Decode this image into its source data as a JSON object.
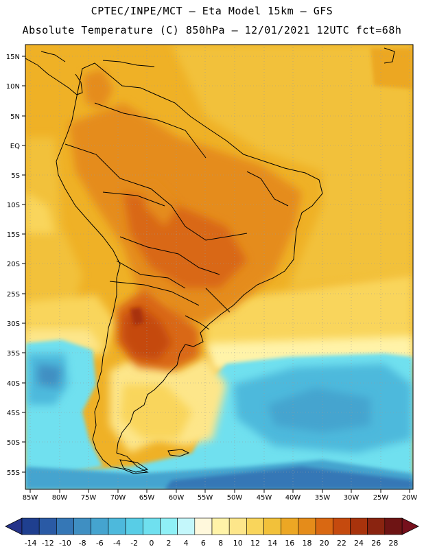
{
  "header": {
    "line1": "CPTEC/INPE/MCT —  Eta Model 15km — GFS",
    "line2": "Absolute Temperature (C) 850hPa — 12/01/2021 12UTC fct=68h"
  },
  "map": {
    "lat_labels": [
      "15N",
      "10N",
      "5N",
      "EQ",
      "5S",
      "10S",
      "15S",
      "20S",
      "25S",
      "30S",
      "35S",
      "40S",
      "45S",
      "50S",
      "55S"
    ],
    "lon_labels": [
      "85W",
      "80W",
      "75W",
      "70W",
      "65W",
      "60W",
      "55W",
      "50W",
      "45W",
      "40W",
      "35W",
      "30W",
      "25W",
      "20W"
    ]
  },
  "colorbar": {
    "labels": [
      "-14",
      "-12",
      "-10",
      "-8",
      "-6",
      "-4",
      "-2",
      "0",
      "2",
      "4",
      "6",
      "8",
      "10",
      "12",
      "14",
      "16",
      "18",
      "20",
      "22",
      "24",
      "26",
      "28"
    ],
    "colors": [
      "#1f3f8f",
      "#2a5aa5",
      "#3577b6",
      "#3f8fc2",
      "#45a4cf",
      "#4db9dc",
      "#58cde6",
      "#6fe0ef",
      "#8ff0f6",
      "#c4f7fb",
      "#fff8dc",
      "#fff3a8",
      "#fde68a",
      "#f9d55b",
      "#f2c13a",
      "#eca724",
      "#e58c1a",
      "#d96812",
      "#c54a0e",
      "#a8330c",
      "#8a2410",
      "#6e1414"
    ],
    "end_low": "#25338a",
    "end_high": "#76101c"
  }
}
